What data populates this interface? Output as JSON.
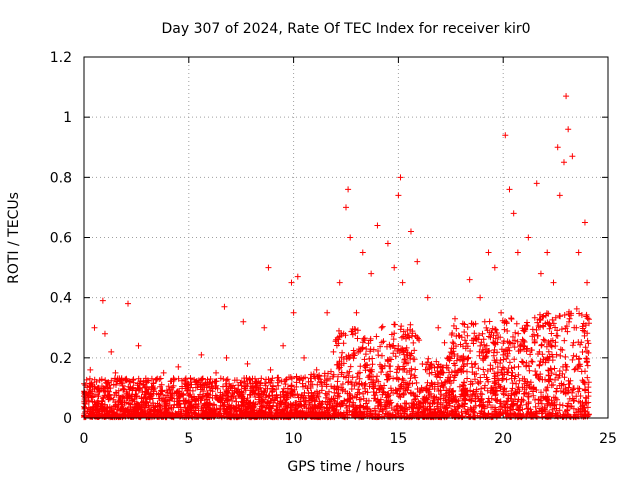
{
  "chart_data": {
    "type": "scatter",
    "title": "Day 307 of 2024, Rate Of TEC Index for receiver kir0",
    "xlabel": "GPS time / hours",
    "ylabel": "ROTI / TECUs",
    "xlim": [
      0,
      25
    ],
    "ylim": [
      0,
      1.2
    ],
    "grid": true,
    "marker": "plus",
    "series": [
      {
        "name": "ROTI",
        "color": "#ff0000",
        "x": [
          0.05,
          0.2,
          0.3,
          0.5,
          0.6,
          0.7,
          0.9,
          1.0,
          1.3,
          1.5,
          2.1,
          2.2,
          2.6,
          3.0,
          3.3,
          3.8,
          4.2,
          4.5,
          5.3,
          5.6,
          6.0,
          6.3,
          6.7,
          6.8,
          7.2,
          7.6,
          7.8,
          8.2,
          8.6,
          8.8,
          8.9,
          9.5,
          9.9,
          10.0,
          10.2,
          10.5,
          11.1,
          11.6,
          11.9,
          12.2,
          12.5,
          12.6,
          12.7,
          13.0,
          13.3,
          13.7,
          14.0,
          14.2,
          14.5,
          14.8,
          15.0,
          15.1,
          15.2,
          15.6,
          15.9,
          16.4,
          16.9,
          17.2,
          17.7,
          18.0,
          18.4,
          18.9,
          19.3,
          19.6,
          19.9,
          20.1,
          20.3,
          20.5,
          20.7,
          21.2,
          21.6,
          21.8,
          22.1,
          22.4,
          22.6,
          22.7,
          22.9,
          23.0,
          23.1,
          23.3,
          23.6,
          23.9,
          24.0
        ],
        "values": [
          0.02,
          0.08,
          0.16,
          0.3,
          0.12,
          0.05,
          0.39,
          0.28,
          0.22,
          0.15,
          0.38,
          0.12,
          0.24,
          0.1,
          0.08,
          0.15,
          0.07,
          0.17,
          0.12,
          0.21,
          0.1,
          0.15,
          0.37,
          0.2,
          0.09,
          0.32,
          0.18,
          0.1,
          0.3,
          0.5,
          0.16,
          0.24,
          0.45,
          0.35,
          0.47,
          0.2,
          0.16,
          0.35,
          0.22,
          0.45,
          0.7,
          0.76,
          0.6,
          0.35,
          0.55,
          0.48,
          0.64,
          0.3,
          0.58,
          0.5,
          0.74,
          0.8,
          0.45,
          0.62,
          0.52,
          0.4,
          0.3,
          0.25,
          0.33,
          0.2,
          0.46,
          0.4,
          0.55,
          0.5,
          0.35,
          0.94,
          0.76,
          0.68,
          0.55,
          0.6,
          0.78,
          0.48,
          0.55,
          0.45,
          0.9,
          0.74,
          0.85,
          1.07,
          0.96,
          0.87,
          0.55,
          0.65,
          0.45
        ]
      }
    ]
  }
}
